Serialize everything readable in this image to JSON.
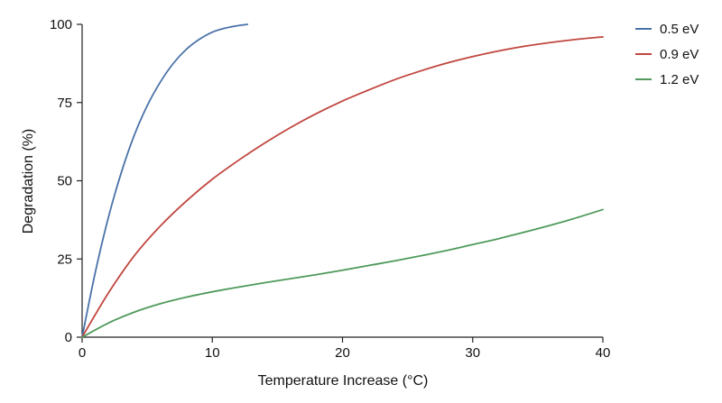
{
  "chart_data": {
    "type": "line",
    "title": "",
    "xlabel": "Temperature Increase (°C)",
    "ylabel": "Degradation (%)",
    "xlim": [
      0,
      40
    ],
    "ylim": [
      0,
      100
    ],
    "xticks": [
      0,
      10,
      20,
      30,
      40
    ],
    "yticks": [
      0,
      25,
      50,
      75,
      100
    ],
    "grid": false,
    "legend_position": "top-right, outside plot",
    "series": [
      {
        "name": "0.5 eV",
        "color": "#4a72a8",
        "x": [
          0,
          1,
          2,
          3,
          4,
          5,
          6,
          7,
          8,
          9,
          10,
          11,
          12,
          12.7
        ],
        "y": [
          0,
          20.5,
          38,
          52.5,
          64.5,
          74,
          81.5,
          87.5,
          92,
          95.2,
          97.5,
          98.8,
          99.6,
          100
        ]
      },
      {
        "name": "0.9 eV",
        "color": "#c0463f",
        "x": [
          0,
          2,
          4,
          6,
          8,
          10,
          12,
          14,
          16,
          18,
          20,
          22,
          24,
          26,
          28,
          30,
          32,
          34,
          36,
          38,
          40
        ],
        "y": [
          0,
          14,
          26,
          35.5,
          43.5,
          50.5,
          56.5,
          62,
          67,
          71.5,
          75.5,
          79,
          82.3,
          85.1,
          87.6,
          89.7,
          91.5,
          93,
          94.2,
          95.2,
          96
        ]
      },
      {
        "name": "1.2 eV",
        "color": "#4f9a5c",
        "x": [
          0,
          2,
          4,
          6,
          8,
          10,
          12,
          14,
          16,
          18,
          20,
          22,
          24,
          26,
          28,
          30,
          32,
          34,
          36,
          38,
          40
        ],
        "y": [
          0,
          4.5,
          8,
          10.7,
          12.8,
          14.5,
          16,
          17.4,
          18.7,
          20,
          21.4,
          22.9,
          24.4,
          26,
          27.7,
          29.6,
          31.5,
          33.6,
          35.8,
          38.2,
          40.8
        ]
      }
    ]
  }
}
